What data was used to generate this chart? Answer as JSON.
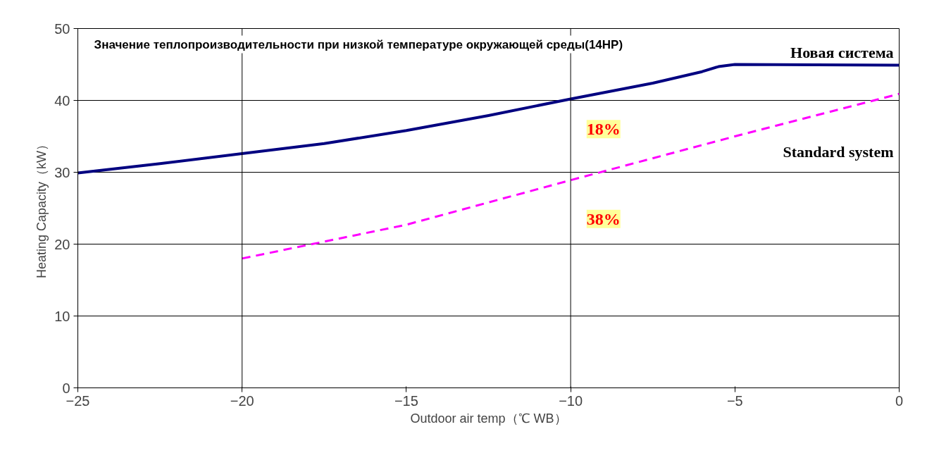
{
  "chart_data": {
    "type": "line",
    "xlabel": "Outdoor air temp（℃ WB）",
    "ylabel": "Heating Capacity（kW）",
    "annotations": [
      "Значение теплопроизводительности при низкой температуре окружающей среды(14HP)",
      "18%",
      "38%"
    ],
    "series": [
      {
        "name": "Новая система",
        "color": "#000080",
        "line_style": "solid",
        "x": [
          -25,
          -22.5,
          -20,
          -17.5,
          -15,
          -12.5,
          -10,
          -7.5,
          -6,
          -5.5,
          -5,
          0
        ],
        "values": [
          29.9,
          31.2,
          32.6,
          34.0,
          35.8,
          37.9,
          40.2,
          42.4,
          44.0,
          44.7,
          45.0,
          44.9
        ]
      },
      {
        "name": "Standard system",
        "color": "#ff00ff",
        "line_style": "dashed",
        "x": [
          -20,
          -15,
          -10,
          -5,
          0
        ],
        "values": [
          18.0,
          22.7,
          28.9,
          35.0,
          40.9
        ]
      }
    ],
    "ref_lines": [
      {
        "axis": "x",
        "value": -20,
        "label": null,
        "color": "#000000"
      },
      {
        "axis": "x",
        "value": -10,
        "label": null,
        "color": "#000000"
      }
    ],
    "xlim": [
      -25,
      0
    ],
    "ylim": [
      0,
      50
    ],
    "xticks": [
      -25,
      -20,
      -15,
      -10,
      -5,
      0
    ],
    "yticks": [
      0,
      10,
      20,
      30,
      40,
      50
    ],
    "grid": "y",
    "marker": "none"
  }
}
